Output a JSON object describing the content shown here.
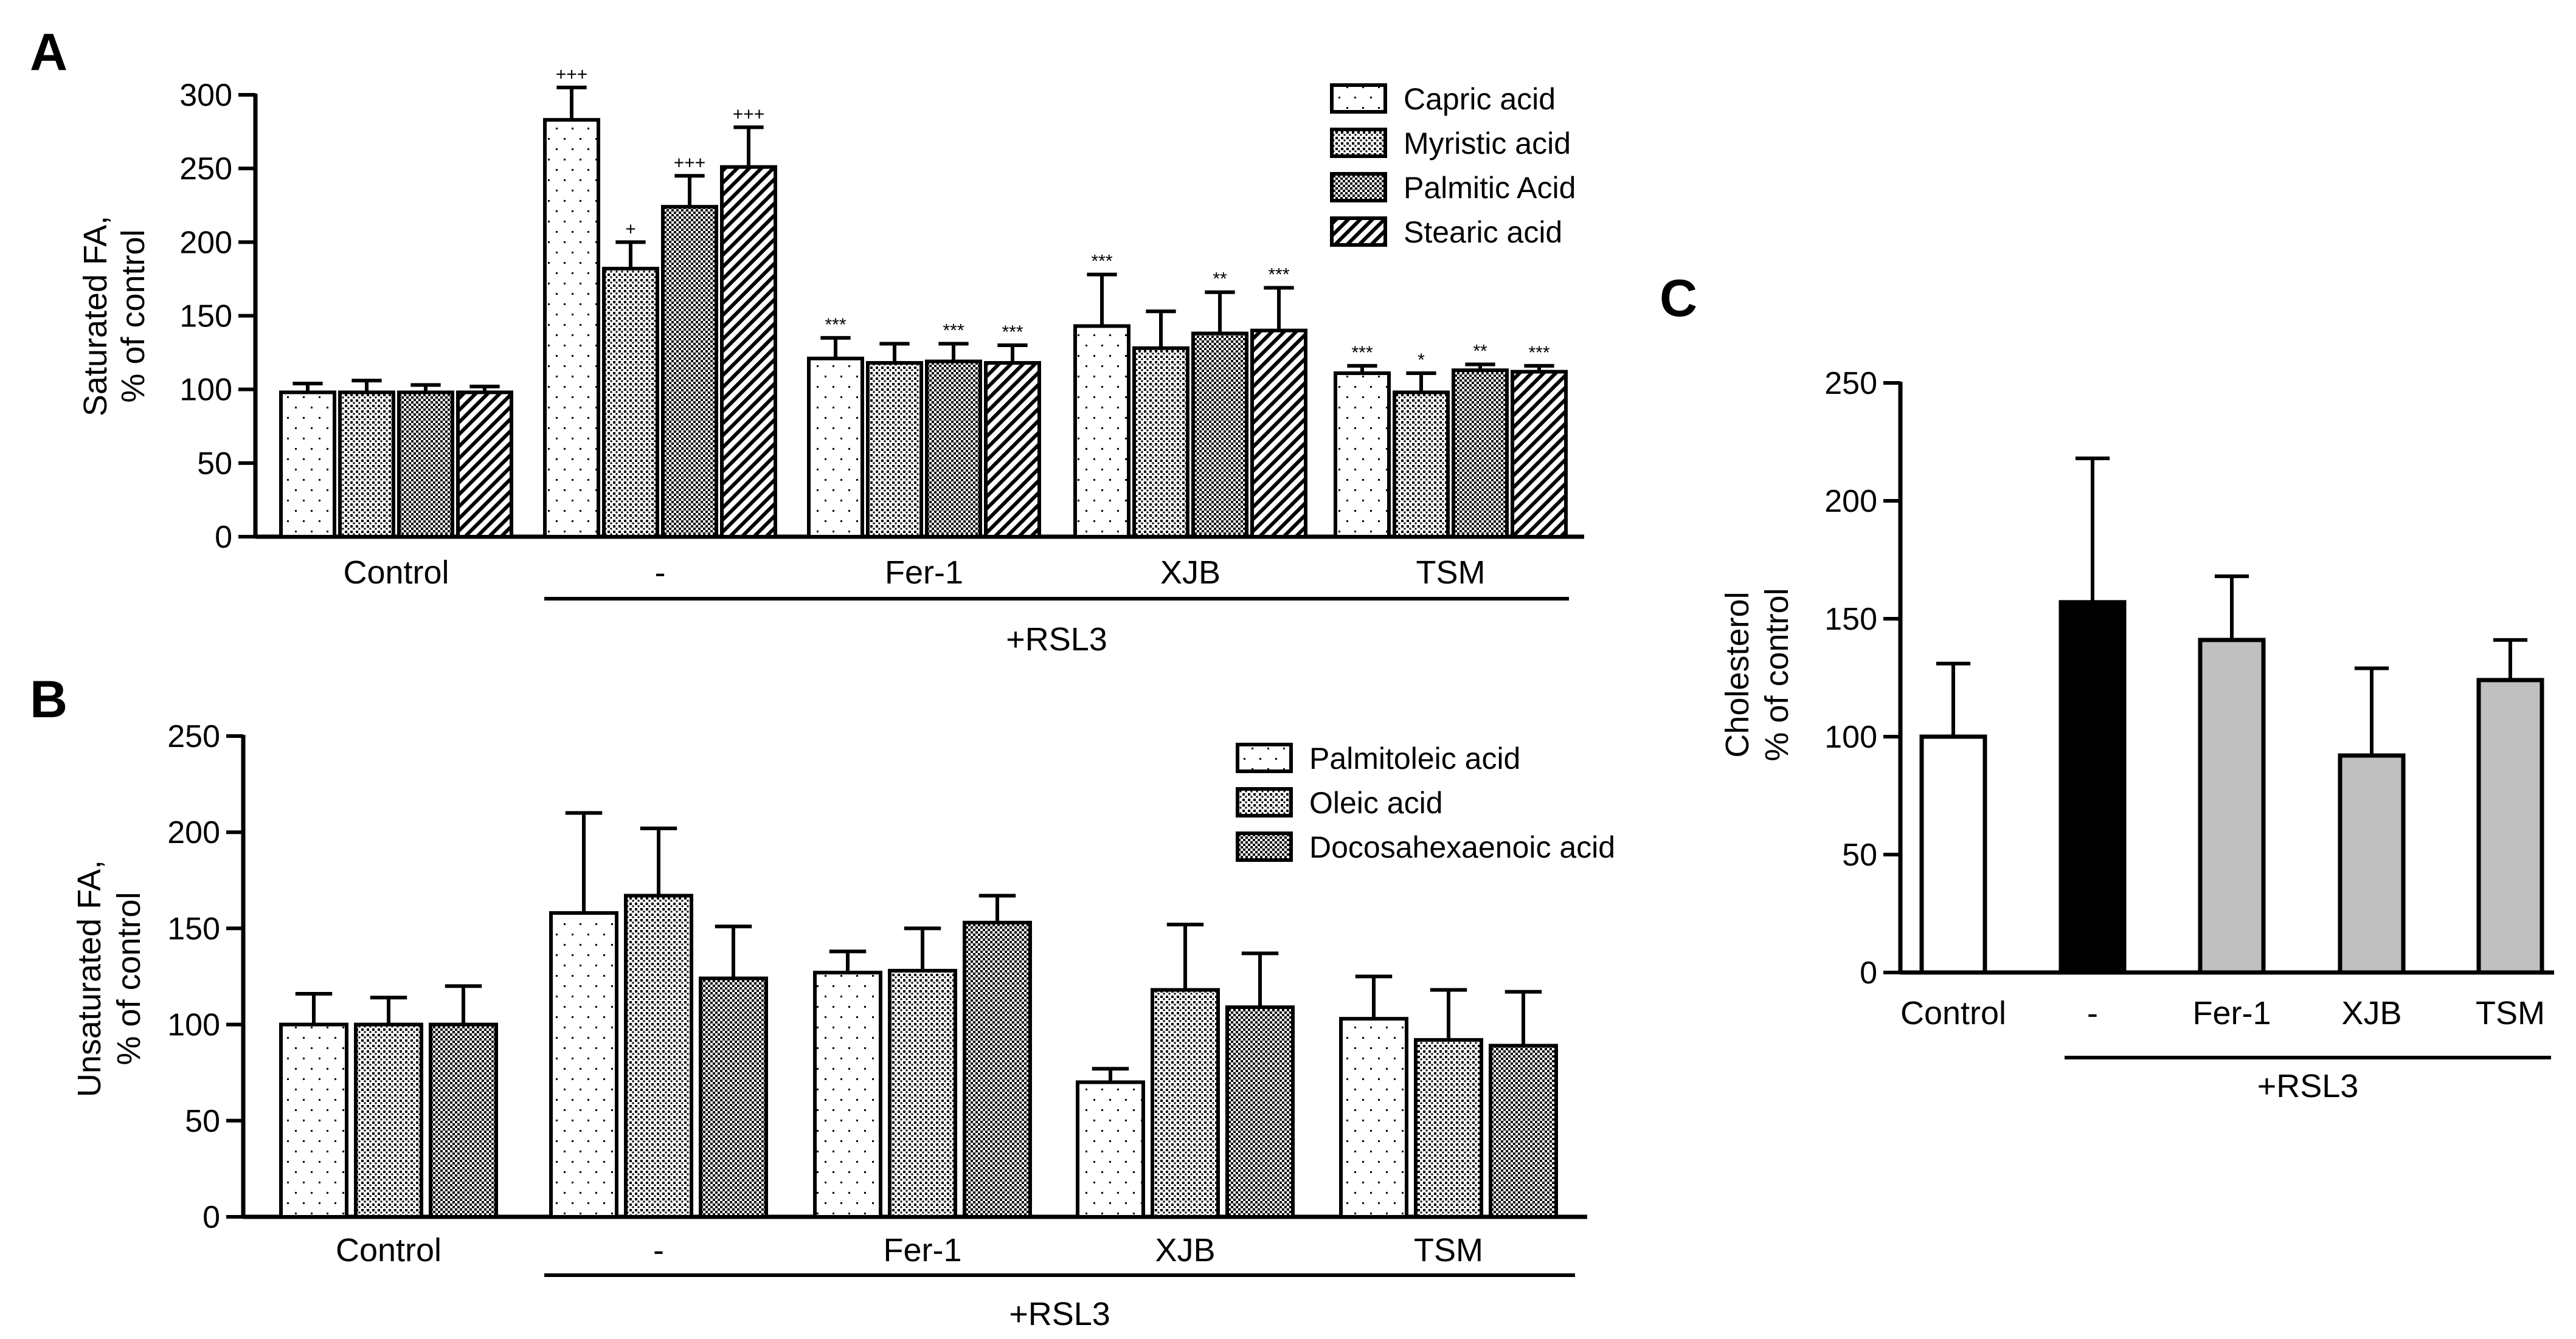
{
  "figure": {
    "panels": [
      {
        "id": "A",
        "label": "A",
        "chart_data": {
          "type": "bar",
          "ylabel": [
            "Saturated FA,",
            "% of control"
          ],
          "ylim": [
            0,
            300
          ],
          "yticks": [
            0,
            50,
            100,
            150,
            200,
            250,
            300
          ],
          "categories": [
            "Control",
            "-",
            "Fer-1",
            "XJB",
            "TSM"
          ],
          "group_label": "+RSL3",
          "series": [
            {
              "name": "Capric acid",
              "pattern": "sparse-dots",
              "values": [
                98,
                283,
                121,
                143,
                111
              ],
              "errors": [
                6,
                22,
                14,
                35,
                5
              ],
              "marks": [
                "",
                "+++",
                "***",
                "***",
                "***"
              ]
            },
            {
              "name": "Myristic acid",
              "pattern": "dense-dots",
              "values": [
                98,
                182,
                118,
                128,
                98
              ],
              "errors": [
                8,
                18,
                13,
                25,
                13
              ],
              "marks": [
                "",
                "+",
                "",
                "",
                "*"
              ]
            },
            {
              "name": "Palmitic Acid",
              "pattern": "checker",
              "values": [
                98,
                224,
                119,
                138,
                113
              ],
              "errors": [
                5,
                21,
                12,
                28,
                4
              ],
              "marks": [
                "",
                "+++",
                "***",
                "**",
                "**"
              ]
            },
            {
              "name": "Stearic acid",
              "pattern": "hatch",
              "values": [
                98,
                251,
                118,
                140,
                112
              ],
              "errors": [
                4,
                27,
                12,
                29,
                4
              ],
              "marks": [
                "",
                "+++",
                "***",
                "***",
                "***"
              ]
            }
          ]
        }
      },
      {
        "id": "B",
        "label": "B",
        "chart_data": {
          "type": "bar",
          "ylabel": [
            "Unsaturated FA,",
            "% of control"
          ],
          "ylim": [
            0,
            250
          ],
          "yticks": [
            0,
            50,
            100,
            150,
            200,
            250
          ],
          "categories": [
            "Control",
            "-",
            "Fer-1",
            "XJB",
            "TSM"
          ],
          "group_label": "+RSL3",
          "series": [
            {
              "name": "Palmitoleic acid",
              "pattern": "sparse-dots",
              "values": [
                100,
                158,
                127,
                70,
                103
              ],
              "errors": [
                16,
                52,
                11,
                7,
                22
              ],
              "marks": [
                "",
                "",
                "",
                "",
                ""
              ]
            },
            {
              "name": "Oleic acid",
              "pattern": "dense-dots",
              "values": [
                100,
                167,
                128,
                118,
                92
              ],
              "errors": [
                14,
                35,
                22,
                34,
                26
              ],
              "marks": [
                "",
                "",
                "",
                "",
                ""
              ]
            },
            {
              "name": "Docosahexaenoic acid",
              "pattern": "checker",
              "values": [
                100,
                124,
                153,
                109,
                89
              ],
              "errors": [
                20,
                27,
                14,
                28,
                28
              ],
              "marks": [
                "",
                "",
                "",
                "",
                ""
              ]
            }
          ]
        }
      },
      {
        "id": "C",
        "label": "C",
        "chart_data": {
          "type": "bar",
          "ylabel": [
            "Cholesterol",
            "% of control"
          ],
          "ylim": [
            0,
            250
          ],
          "yticks": [
            0,
            50,
            100,
            150,
            200,
            250
          ],
          "categories": [
            "Control",
            "-",
            "Fer-1",
            "XJB",
            "TSM"
          ],
          "group_label": "+RSL3",
          "values": [
            100,
            157,
            141,
            92,
            124
          ],
          "errors": [
            31,
            61,
            27,
            37,
            17
          ],
          "fills": [
            "#ffffff",
            "#000000",
            "#c0c0c0",
            "#c0c0c0",
            "#c0c0c0"
          ]
        }
      }
    ]
  }
}
